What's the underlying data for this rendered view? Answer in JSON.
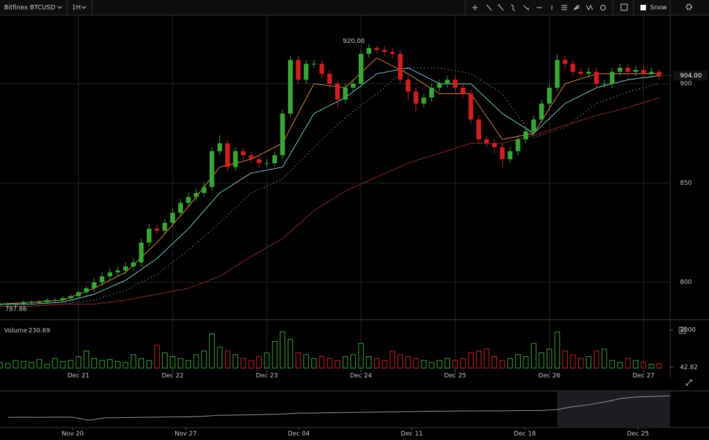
{
  "toolbar": {
    "symbol": "Bitfinex BTCUSD",
    "interval": "1H",
    "theme": "Snow"
  },
  "chart_data": [
    {
      "type": "candlestick",
      "xlim": [
        0,
        85.4
      ],
      "ylim": [
        781.9,
        934.5
      ],
      "yticks": [
        800,
        850,
        900
      ],
      "grid": true,
      "xticks": [
        {
          "value": 10,
          "label": "Dec 21"
        },
        {
          "value": 22,
          "label": "Dec 22"
        },
        {
          "value": 34,
          "label": "Dec 23"
        },
        {
          "value": 46,
          "label": "Dec 24"
        },
        {
          "value": 58,
          "label": "Dec 25"
        },
        {
          "value": 70,
          "label": "Dec 26"
        },
        {
          "value": 82,
          "label": "Dec 27"
        }
      ],
      "up_color": "#3aa635",
      "down_color": "#d01f1f",
      "open": [
        789,
        789,
        789,
        789,
        790,
        790,
        790,
        791,
        791,
        792,
        793,
        795,
        797,
        800,
        803,
        805,
        806,
        808,
        810,
        820,
        827,
        826,
        830,
        835,
        840,
        843,
        845,
        848,
        866,
        870,
        858,
        866,
        864,
        862,
        860,
        860,
        864,
        885,
        912,
        902,
        910,
        910,
        905,
        900,
        892,
        898,
        900,
        915,
        918,
        917,
        916,
        915,
        902,
        896,
        890,
        893,
        898,
        900,
        902,
        898,
        895,
        882,
        872,
        870,
        868,
        862,
        866,
        872,
        876,
        882,
        890,
        898,
        912,
        910,
        906,
        905,
        906,
        900,
        900,
        906,
        908,
        906,
        907,
        905,
        906
      ],
      "high": [
        790,
        790,
        790,
        791,
        791,
        791,
        792,
        792,
        793,
        794,
        796,
        798,
        802,
        805,
        807,
        808,
        810,
        812,
        822,
        829,
        829,
        832,
        837,
        842,
        845,
        847,
        850,
        868,
        874,
        872,
        868,
        868,
        866,
        864,
        862,
        866,
        887,
        914,
        914,
        912,
        912,
        912,
        907,
        902,
        900,
        902,
        917,
        920,
        919,
        919,
        918,
        917,
        904,
        898,
        895,
        900,
        902,
        904,
        904,
        900,
        897,
        884,
        874,
        872,
        870,
        868,
        874,
        878,
        884,
        892,
        900,
        915,
        914,
        912,
        908,
        908,
        908,
        902,
        908,
        910,
        910,
        909,
        909,
        908,
        907
      ],
      "low": [
        788,
        787.86,
        788,
        788,
        789,
        789,
        789,
        790,
        790,
        791,
        792,
        794,
        795,
        798,
        801,
        803,
        804,
        806,
        808,
        818,
        824,
        824,
        828,
        833,
        838,
        841,
        843,
        846,
        864,
        856,
        856,
        862,
        860,
        858,
        858,
        858,
        862,
        883,
        900,
        900,
        908,
        903,
        898,
        888,
        890,
        896,
        898,
        913,
        915,
        914,
        913,
        900,
        892,
        886,
        888,
        891,
        896,
        898,
        896,
        893,
        880,
        870,
        868,
        865,
        858,
        860,
        864,
        870,
        874,
        880,
        888,
        896,
        907,
        904,
        903,
        903,
        898,
        898,
        898,
        904,
        904,
        904,
        903,
        903,
        902
      ],
      "close": [
        789,
        789,
        789,
        790,
        790,
        790,
        791,
        791,
        792,
        793,
        795,
        797,
        800,
        803,
        805,
        806,
        808,
        810,
        820,
        827,
        826,
        830,
        835,
        840,
        843,
        845,
        848,
        866,
        870,
        858,
        866,
        864,
        862,
        860,
        860,
        864,
        885,
        912,
        902,
        910,
        910,
        905,
        900,
        892,
        898,
        900,
        915,
        918,
        917,
        916,
        915,
        902,
        896,
        890,
        893,
        898,
        900,
        902,
        898,
        895,
        882,
        872,
        870,
        868,
        862,
        866,
        872,
        876,
        882,
        890,
        898,
        912,
        910,
        906,
        905,
        906,
        900,
        900,
        906,
        908,
        906,
        907,
        905,
        906,
        904
      ],
      "high_label": "920.00",
      "low_label": "787.86",
      "last_label": "904.00",
      "lines": [
        {
          "color": "#e08a3a",
          "style": "solid",
          "x": [
            0,
            4,
            8,
            12,
            16,
            20,
            24,
            28,
            32,
            36,
            40,
            44,
            48,
            52,
            56,
            60,
            64,
            68,
            72,
            76,
            80,
            84
          ],
          "values": [
            789,
            790,
            791,
            797,
            805,
            820,
            838,
            858,
            862,
            870,
            900,
            898,
            913,
            905,
            895,
            895,
            872,
            875,
            900,
            905,
            905,
            905
          ]
        },
        {
          "color": "#7fd3d9",
          "style": "solid",
          "x": [
            0,
            4,
            8,
            12,
            16,
            20,
            24,
            28,
            32,
            36,
            40,
            44,
            48,
            52,
            56,
            60,
            64,
            68,
            72,
            76,
            80,
            84
          ],
          "values": [
            789,
            789,
            790,
            794,
            801,
            812,
            827,
            845,
            855,
            858,
            885,
            893,
            905,
            908,
            900,
            900,
            885,
            875,
            890,
            898,
            902,
            904
          ]
        },
        {
          "color": "#bbbbbb",
          "style": "dotted",
          "x": [
            0,
            4,
            8,
            12,
            16,
            20,
            24,
            28,
            32,
            36,
            40,
            44,
            48,
            52,
            56,
            60,
            64,
            68,
            72,
            76,
            80,
            84
          ],
          "values": [
            788,
            788,
            789,
            791,
            796,
            804,
            816,
            830,
            845,
            852,
            868,
            883,
            895,
            908,
            908,
            905,
            895,
            873,
            878,
            890,
            896,
            900
          ]
        },
        {
          "color": "#8b2a2a",
          "style": "solid",
          "x": [
            0,
            4,
            8,
            12,
            16,
            20,
            24,
            28,
            32,
            36,
            40,
            44,
            48,
            52,
            56,
            60,
            64,
            68,
            72,
            76,
            80,
            84
          ],
          "values": [
            788,
            788,
            789,
            789,
            791,
            794,
            797,
            803,
            813,
            822,
            836,
            846,
            853,
            860,
            865,
            870,
            870,
            874,
            879,
            884,
            888,
            893
          ]
        }
      ]
    },
    {
      "type": "bar",
      "title": "Volume",
      "ylim": [
        0,
        2436
      ],
      "yticks": [
        42.82,
        2000
      ],
      "values": [
        300,
        250,
        400,
        350,
        300,
        450,
        200,
        500,
        350,
        400,
        600,
        900,
        500,
        400,
        450,
        350,
        300,
        700,
        500,
        400,
        1200,
        800,
        600,
        500,
        400,
        700,
        900,
        1800,
        1100,
        900,
        700,
        500,
        400,
        600,
        800,
        1400,
        1900,
        1500,
        800,
        700,
        500,
        600,
        500,
        400,
        600,
        700,
        1300,
        600,
        500,
        400,
        900,
        700,
        600,
        500,
        400,
        300,
        400,
        500,
        400,
        500,
        800,
        900,
        1000,
        600,
        400,
        500,
        700,
        600,
        1300,
        800,
        1000,
        1900,
        900,
        700,
        500,
        600,
        900,
        1000,
        400,
        300,
        500,
        400,
        300,
        200,
        230.69
      ]
    },
    {
      "type": "line",
      "color": "#9a9a9a",
      "xlim": [
        -4.5,
        37
      ],
      "ylim": [
        600,
        940
      ],
      "window": [
        30,
        37
      ],
      "xticks": [
        {
          "value": 0,
          "label": "Nov 20"
        },
        {
          "value": 7,
          "label": "Nov 27"
        },
        {
          "value": 14,
          "label": "Dec 04"
        },
        {
          "value": 21,
          "label": "Dec 11"
        },
        {
          "value": 28,
          "label": "Dec 18"
        },
        {
          "value": 35,
          "label": "Dec 25"
        }
      ],
      "x": [
        -4,
        -3,
        -2,
        -1,
        0,
        1,
        2,
        3,
        4,
        5,
        6,
        7,
        8,
        9,
        10,
        11,
        12,
        13,
        14,
        15,
        16,
        17,
        18,
        19,
        20,
        21,
        22,
        23,
        24,
        25,
        26,
        27,
        28,
        29,
        30,
        31,
        32,
        33,
        34,
        35,
        36,
        37
      ],
      "values": [
        690,
        692,
        690,
        693,
        692,
        660,
        685,
        688,
        690,
        692,
        694,
        695,
        700,
        712,
        713,
        716,
        720,
        725,
        733,
        735,
        738,
        740,
        742,
        745,
        748,
        750,
        752,
        754,
        755,
        756,
        757,
        758,
        760,
        760,
        770,
        800,
        820,
        850,
        885,
        900,
        905,
        912
      ]
    }
  ]
}
